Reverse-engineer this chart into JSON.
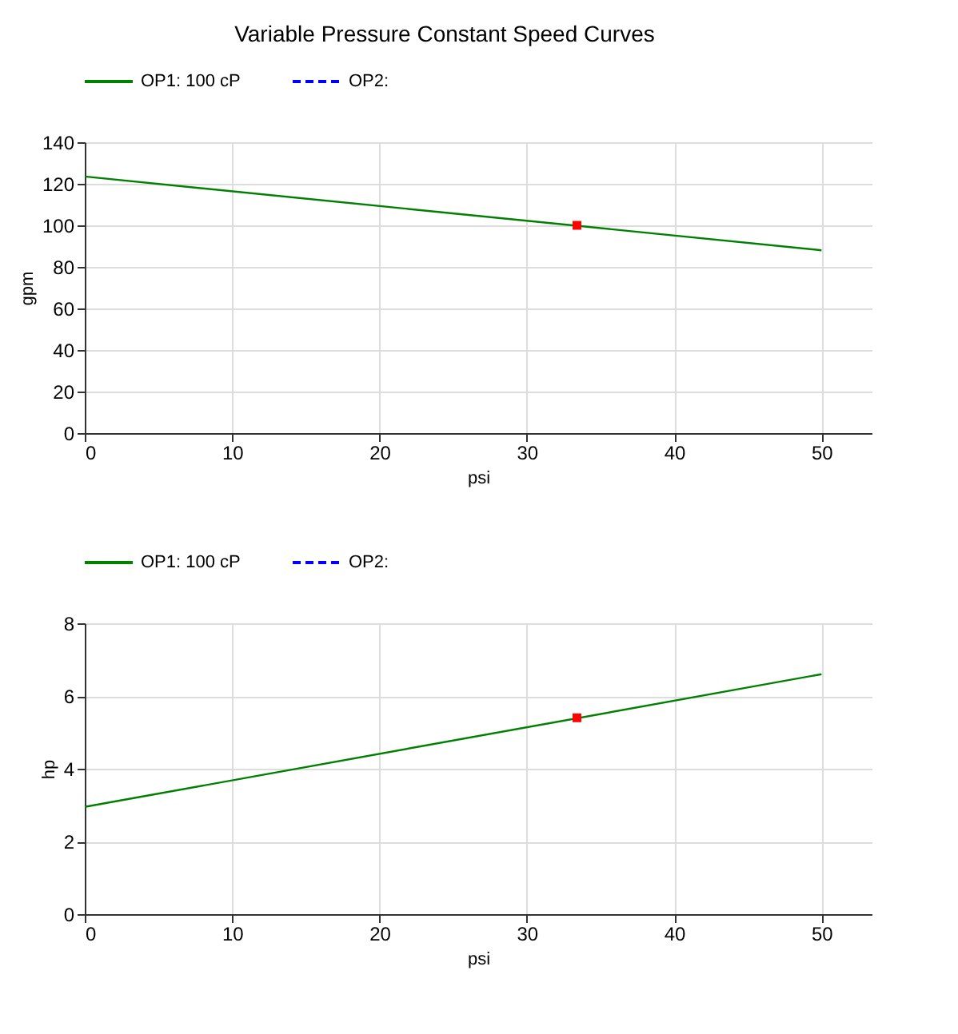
{
  "chart_data": [
    {
      "type": "line",
      "title": "Variable Pressure Constant Speed Curves",
      "xlabel": "psi",
      "ylabel": "gpm",
      "xlim": [
        0,
        53.4
      ],
      "xticks": [
        0,
        10,
        20,
        30,
        40,
        50
      ],
      "ylim": [
        0,
        140
      ],
      "yticks": [
        0,
        20,
        40,
        60,
        80,
        100,
        120,
        140
      ],
      "grid": true,
      "legend": "top left",
      "series": [
        {
          "name": "OP1: 100 cP",
          "color": "#008000",
          "line_style": "solid",
          "x": [
            0,
            50
          ],
          "values": [
            123.5,
            88
          ]
        },
        {
          "name": "OP2:",
          "color": "#0000ff",
          "line_style": "dashed"
        },
        {
          "type": "scatter",
          "color": "#ff0000",
          "marker": "square",
          "x": [
            33.4
          ],
          "values": [
            100
          ]
        }
      ]
    },
    {
      "type": "line",
      "xlabel": "psi",
      "ylabel": "hp",
      "xlim": [
        0,
        53.4
      ],
      "xticks": [
        0,
        10,
        20,
        30,
        40,
        50
      ],
      "ylim": [
        0,
        8
      ],
      "yticks": [
        0,
        2,
        4,
        6,
        8
      ],
      "grid": true,
      "legend": "top left",
      "series": [
        {
          "name": "OP1: 100 cP",
          "color": "#008000",
          "line_style": "solid",
          "x": [
            0,
            50
          ],
          "values": [
            2.95,
            6.6
          ]
        },
        {
          "name": "OP2:",
          "color": "#0000ff",
          "line_style": "dashed"
        },
        {
          "type": "scatter",
          "color": "#ff0000",
          "marker": "square",
          "x": [
            33.4
          ],
          "values": [
            5.4
          ]
        }
      ]
    }
  ]
}
